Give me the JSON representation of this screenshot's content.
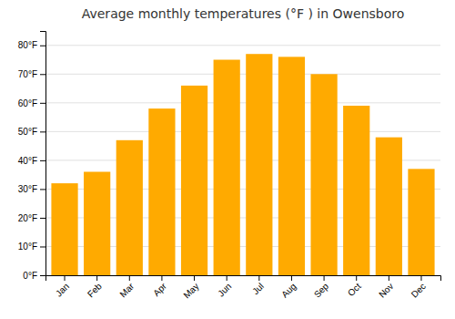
{
  "chart_data": {
    "type": "bar",
    "title": "Average monthly temperatures (°F ) in Owensboro",
    "categories": [
      "Jan",
      "Feb",
      "Mar",
      "Apr",
      "May",
      "Jun",
      "Jul",
      "Aug",
      "Sep",
      "Oct",
      "Nov",
      "Dec"
    ],
    "values": [
      32,
      36,
      47,
      58,
      66,
      75,
      77,
      76,
      70,
      59,
      48,
      37
    ],
    "color": "#FFAA00",
    "ylim": [
      0,
      85
    ],
    "yticks": [
      {
        "value": 0,
        "label": "0°F"
      },
      {
        "value": 10,
        "label": "10°F"
      },
      {
        "value": 20,
        "label": "20°F"
      },
      {
        "value": 30,
        "label": "30°F"
      },
      {
        "value": 40,
        "label": "40°F"
      },
      {
        "value": 50,
        "label": "50°F"
      },
      {
        "value": 60,
        "label": "60°F"
      },
      {
        "value": 70,
        "label": "70°F"
      },
      {
        "value": 80,
        "label": "80°F"
      }
    ],
    "grid": true
  }
}
